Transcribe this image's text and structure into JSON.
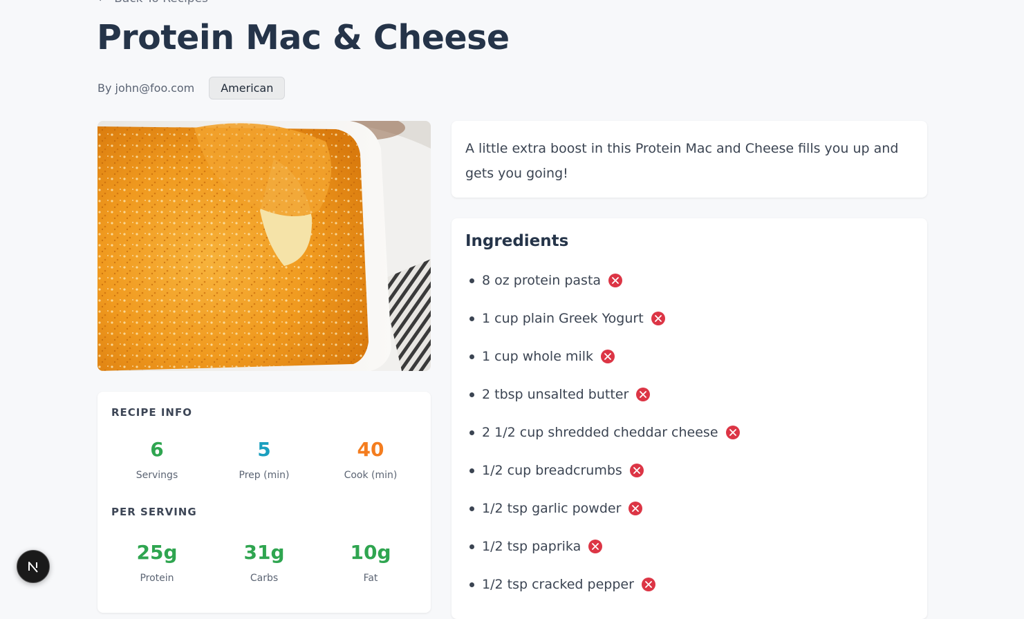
{
  "nav": {
    "back_label": "Back To Recipes",
    "back_icon": "arrow-left-icon"
  },
  "recipe": {
    "title": "Protein Mac & Cheese",
    "author": "By john@foo.com",
    "cuisine": "American",
    "description": "A little extra boost in this Protein Mac and Cheese fills you up and gets you going!"
  },
  "info": {
    "heading": "RECIPE INFO",
    "servings": {
      "value": "6",
      "label": "Servings"
    },
    "prep": {
      "value": "5",
      "label": "Prep (min)"
    },
    "cook": {
      "value": "40",
      "label": "Cook (min)"
    }
  },
  "per_serving": {
    "heading": "PER SERVING",
    "protein": {
      "value": "25g",
      "label": "Protein"
    },
    "carbs": {
      "value": "31g",
      "label": "Carbs"
    },
    "fat": {
      "value": "10g",
      "label": "Fat"
    }
  },
  "ingredients": {
    "heading": "Ingredients",
    "items": [
      "8 oz protein pasta",
      "1 cup plain Greek Yogurt",
      "1 cup whole milk",
      "2 tbsp unsalted butter",
      "2 1/2 cup shredded cheddar cheese",
      "1/2 cup breadcrumbs",
      "1/2 tsp garlic powder",
      "1/2 tsp paprika",
      "1/2 tsp cracked pepper"
    ],
    "remove_icon": "close-circle-icon"
  },
  "colors": {
    "green": "#2fa550",
    "teal": "#1a9fbf",
    "orange": "#f47d1f",
    "remove": "#dc3545",
    "title": "#253449"
  },
  "dev_badge": {
    "letter": "N",
    "icon": "nextjs-icon"
  }
}
